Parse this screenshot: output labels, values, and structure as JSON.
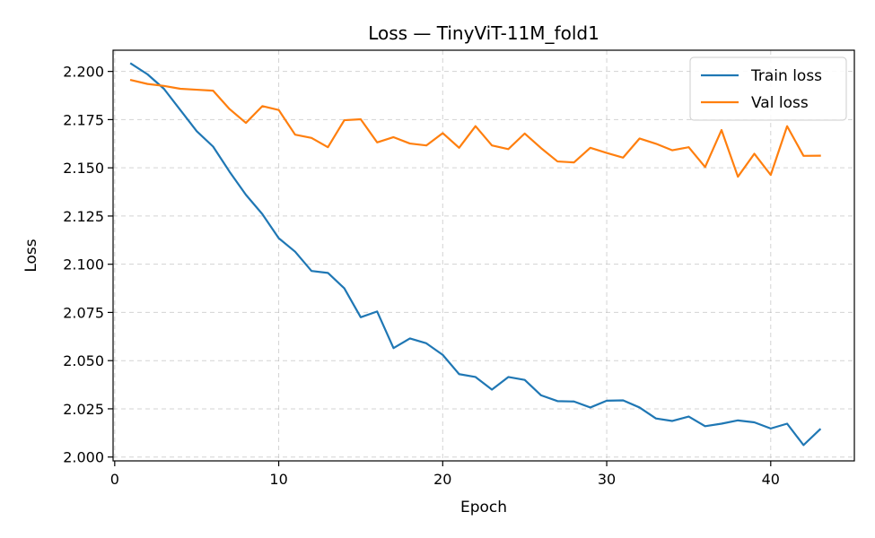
{
  "chart_data": {
    "type": "line",
    "title": "Loss — TinyViT-11M_fold1",
    "xlabel": "Epoch",
    "ylabel": "Loss",
    "xlim": [
      -0.1,
      45.1
    ],
    "ylim": [
      1.998,
      2.211
    ],
    "xticks": [
      0,
      10,
      20,
      30,
      40
    ],
    "xtick_labels": [
      "0",
      "10",
      "20",
      "30",
      "40"
    ],
    "yticks": [
      2.0,
      2.025,
      2.05,
      2.075,
      2.1,
      2.125,
      2.15,
      2.175,
      2.2
    ],
    "ytick_labels": [
      "2.000",
      "2.025",
      "2.050",
      "2.075",
      "2.100",
      "2.125",
      "2.150",
      "2.175",
      "2.200"
    ],
    "grid": true,
    "legend_position": "upper-right",
    "x": [
      1,
      2,
      3,
      4,
      5,
      6,
      7,
      8,
      9,
      10,
      11,
      12,
      13,
      14,
      15,
      16,
      17,
      18,
      19,
      20,
      21,
      22,
      23,
      24,
      25,
      26,
      27,
      28,
      29,
      30,
      31,
      32,
      33,
      34,
      35,
      36,
      37,
      38,
      39,
      40,
      41,
      42,
      43
    ],
    "series": [
      {
        "name": "Train loss",
        "color": "#1f77b4",
        "values": [
          2.204,
          2.1985,
          2.191,
          2.18,
          2.169,
          2.161,
          2.148,
          2.136,
          2.126,
          2.1135,
          2.1065,
          2.0965,
          2.0955,
          2.0875,
          2.0725,
          2.0755,
          2.0565,
          2.0615,
          2.059,
          2.053,
          2.043,
          2.0415,
          2.035,
          2.0415,
          2.04,
          2.032,
          2.029,
          2.0288,
          2.0257,
          2.0292,
          2.0294,
          2.0257,
          2.02,
          2.0187,
          2.021,
          2.016,
          2.0173,
          2.019,
          2.018,
          2.0148,
          2.0173,
          2.0062,
          2.0143
        ]
      },
      {
        "name": "Val loss",
        "color": "#ff7f0e",
        "values": [
          2.1955,
          2.1935,
          2.1925,
          2.191,
          2.1905,
          2.19,
          2.1805,
          2.1733,
          2.182,
          2.18,
          2.1672,
          2.1655,
          2.1607,
          2.1747,
          2.1752,
          2.1632,
          2.1659,
          2.1626,
          2.1616,
          2.168,
          2.1604,
          2.1716,
          2.1616,
          2.1597,
          2.1678,
          2.1602,
          2.1533,
          2.1528,
          2.1604,
          2.1577,
          2.1553,
          2.1652,
          2.1625,
          2.1591,
          2.1607,
          2.1504,
          2.1696,
          2.1454,
          2.1573,
          2.1463,
          2.1716,
          2.1562,
          2.1563
        ]
      }
    ]
  }
}
